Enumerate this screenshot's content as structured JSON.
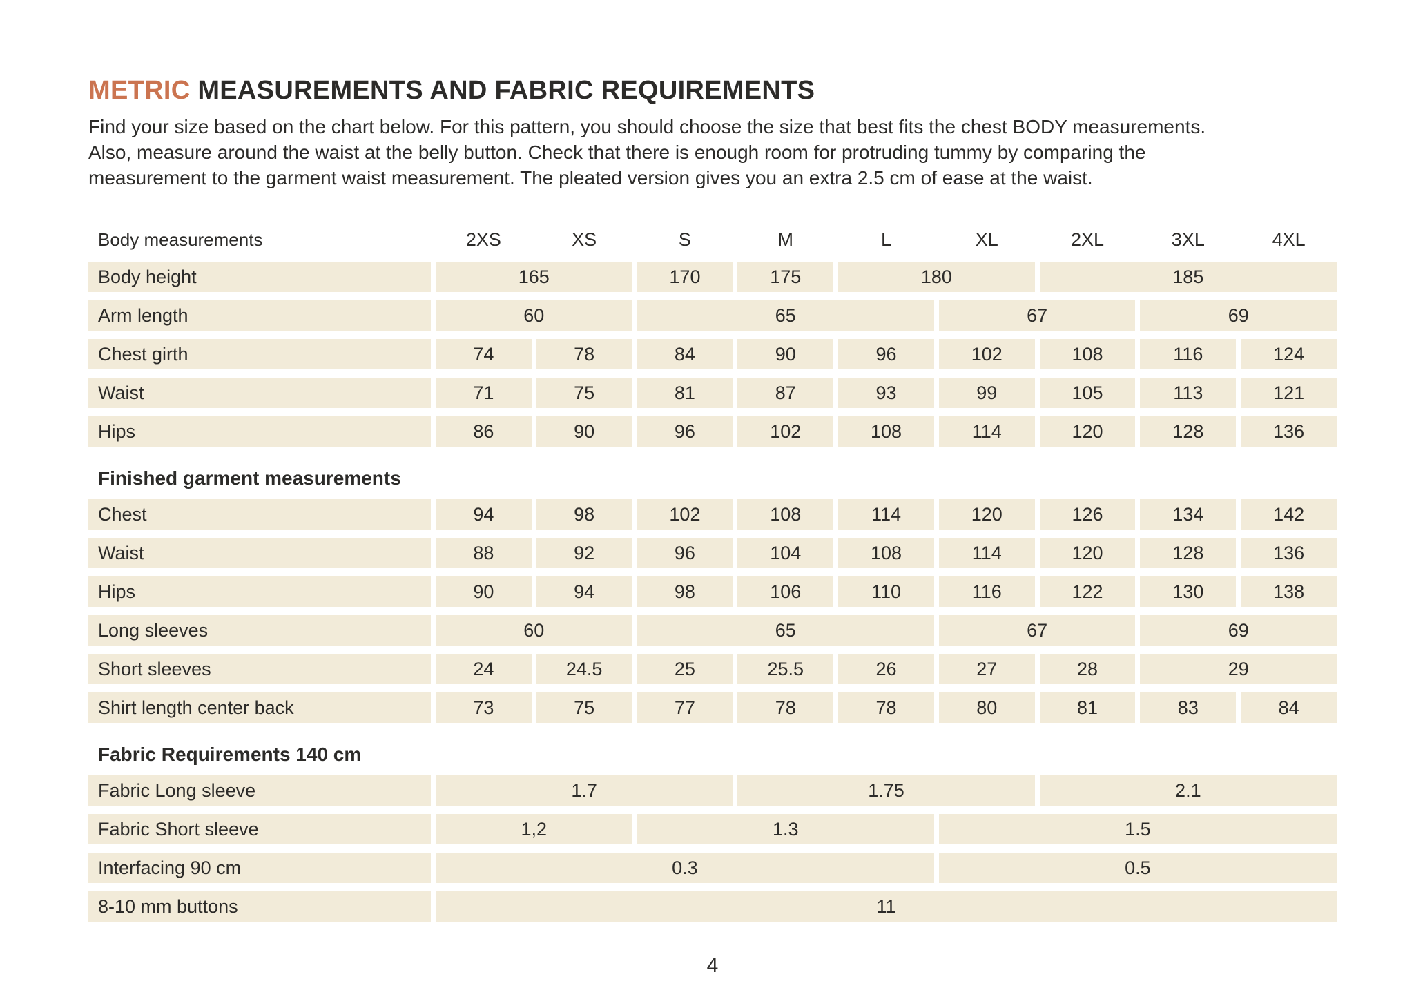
{
  "colors": {
    "accent": "#cb7450",
    "cell_bg": "#f2ebd9",
    "text": "#2c2b29"
  },
  "title": {
    "highlight": "METRIC",
    "rest": " MEASUREMENTS AND FABRIC REQUIREMENTS"
  },
  "intro": {
    "lines": [
      "Find your size based on the chart below. For this pattern, you should choose the size that best fits the chest BODY measurements.",
      "Also, measure around the waist at the belly button. Check that there is enough room for protruding tummy by comparing the",
      "measurement to the garment waist measurement. The pleated version gives you an extra 2.5 cm of ease at the waist."
    ]
  },
  "table": {
    "header_label": "Body measurements",
    "sizes": [
      "2XS",
      "XS",
      "S",
      "M",
      "L",
      "XL",
      "2XL",
      "3XL",
      "4XL"
    ],
    "sections": [
      {
        "title": "",
        "rows": [
          {
            "label": "Body height",
            "cells": [
              {
                "value": "165",
                "span": 2
              },
              {
                "value": "170",
                "span": 1
              },
              {
                "value": "175",
                "span": 1
              },
              {
                "value": "180",
                "span": 2
              },
              {
                "value": "185",
                "span": 3
              }
            ]
          },
          {
            "label": "Arm length",
            "cells": [
              {
                "value": "60",
                "span": 2
              },
              {
                "value": "65",
                "span": 3
              },
              {
                "value": "67",
                "span": 2
              },
              {
                "value": "69",
                "span": 2
              }
            ]
          },
          {
            "label": "Chest girth",
            "cells": [
              {
                "value": "74",
                "span": 1
              },
              {
                "value": "78",
                "span": 1
              },
              {
                "value": "84",
                "span": 1
              },
              {
                "value": "90",
                "span": 1
              },
              {
                "value": "96",
                "span": 1
              },
              {
                "value": "102",
                "span": 1
              },
              {
                "value": "108",
                "span": 1
              },
              {
                "value": "116",
                "span": 1
              },
              {
                "value": "124",
                "span": 1
              }
            ]
          },
          {
            "label": "Waist",
            "cells": [
              {
                "value": "71",
                "span": 1
              },
              {
                "value": "75",
                "span": 1
              },
              {
                "value": "81",
                "span": 1
              },
              {
                "value": "87",
                "span": 1
              },
              {
                "value": "93",
                "span": 1
              },
              {
                "value": "99",
                "span": 1
              },
              {
                "value": "105",
                "span": 1
              },
              {
                "value": "113",
                "span": 1
              },
              {
                "value": "121",
                "span": 1
              }
            ]
          },
          {
            "label": "Hips",
            "cells": [
              {
                "value": "86",
                "span": 1
              },
              {
                "value": "90",
                "span": 1
              },
              {
                "value": "96",
                "span": 1
              },
              {
                "value": "102",
                "span": 1
              },
              {
                "value": "108",
                "span": 1
              },
              {
                "value": "114",
                "span": 1
              },
              {
                "value": "120",
                "span": 1
              },
              {
                "value": "128",
                "span": 1
              },
              {
                "value": "136",
                "span": 1
              }
            ]
          }
        ]
      },
      {
        "title": "Finished garment measurements",
        "rows": [
          {
            "label": "Chest",
            "cells": [
              {
                "value": "94",
                "span": 1
              },
              {
                "value": "98",
                "span": 1
              },
              {
                "value": "102",
                "span": 1
              },
              {
                "value": "108",
                "span": 1
              },
              {
                "value": "114",
                "span": 1
              },
              {
                "value": "120",
                "span": 1
              },
              {
                "value": "126",
                "span": 1
              },
              {
                "value": "134",
                "span": 1
              },
              {
                "value": "142",
                "span": 1
              }
            ]
          },
          {
            "label": "Waist",
            "cells": [
              {
                "value": "88",
                "span": 1
              },
              {
                "value": "92",
                "span": 1
              },
              {
                "value": "96",
                "span": 1
              },
              {
                "value": "104",
                "span": 1
              },
              {
                "value": "108",
                "span": 1
              },
              {
                "value": "114",
                "span": 1
              },
              {
                "value": "120",
                "span": 1
              },
              {
                "value": "128",
                "span": 1
              },
              {
                "value": "136",
                "span": 1
              }
            ]
          },
          {
            "label": "Hips",
            "cells": [
              {
                "value": "90",
                "span": 1
              },
              {
                "value": "94",
                "span": 1
              },
              {
                "value": "98",
                "span": 1
              },
              {
                "value": "106",
                "span": 1
              },
              {
                "value": "110",
                "span": 1
              },
              {
                "value": "116",
                "span": 1
              },
              {
                "value": "122",
                "span": 1
              },
              {
                "value": "130",
                "span": 1
              },
              {
                "value": "138",
                "span": 1
              }
            ]
          },
          {
            "label": "Long sleeves",
            "cells": [
              {
                "value": "60",
                "span": 2
              },
              {
                "value": "65",
                "span": 3
              },
              {
                "value": "67",
                "span": 2
              },
              {
                "value": "69",
                "span": 2
              }
            ]
          },
          {
            "label": "Short sleeves",
            "cells": [
              {
                "value": "24",
                "span": 1
              },
              {
                "value": "24.5",
                "span": 1
              },
              {
                "value": "25",
                "span": 1
              },
              {
                "value": "25.5",
                "span": 1
              },
              {
                "value": "26",
                "span": 1
              },
              {
                "value": "27",
                "span": 1
              },
              {
                "value": "28",
                "span": 1
              },
              {
                "value": "29",
                "span": 2
              }
            ]
          },
          {
            "label": "Shirt length center back",
            "cells": [
              {
                "value": "73",
                "span": 1
              },
              {
                "value": "75",
                "span": 1
              },
              {
                "value": "77",
                "span": 1
              },
              {
                "value": "78",
                "span": 1
              },
              {
                "value": "78",
                "span": 1
              },
              {
                "value": "80",
                "span": 1
              },
              {
                "value": "81",
                "span": 1
              },
              {
                "value": "83",
                "span": 1
              },
              {
                "value": "84",
                "span": 1
              }
            ]
          }
        ]
      },
      {
        "title": "Fabric Requirements 140 cm",
        "rows": [
          {
            "label": "Fabric  Long sleeve",
            "cells": [
              {
                "value": "1.7",
                "span": 3
              },
              {
                "value": "1.75",
                "span": 3
              },
              {
                "value": "2.1",
                "span": 3
              }
            ]
          },
          {
            "label": "Fabric  Short sleeve",
            "cells": [
              {
                "value": "1,2",
                "span": 2
              },
              {
                "value": "1.3",
                "span": 3
              },
              {
                "value": "1.5",
                "span": 4
              }
            ]
          },
          {
            "label": "Interfacing 90 cm",
            "cells": [
              {
                "value": "0.3",
                "span": 5
              },
              {
                "value": "0.5",
                "span": 4
              }
            ]
          },
          {
            "label": "8-10 mm buttons",
            "cells": [
              {
                "value": "11",
                "span": 9
              }
            ]
          }
        ]
      }
    ]
  },
  "footer": {
    "page_number": "4"
  }
}
